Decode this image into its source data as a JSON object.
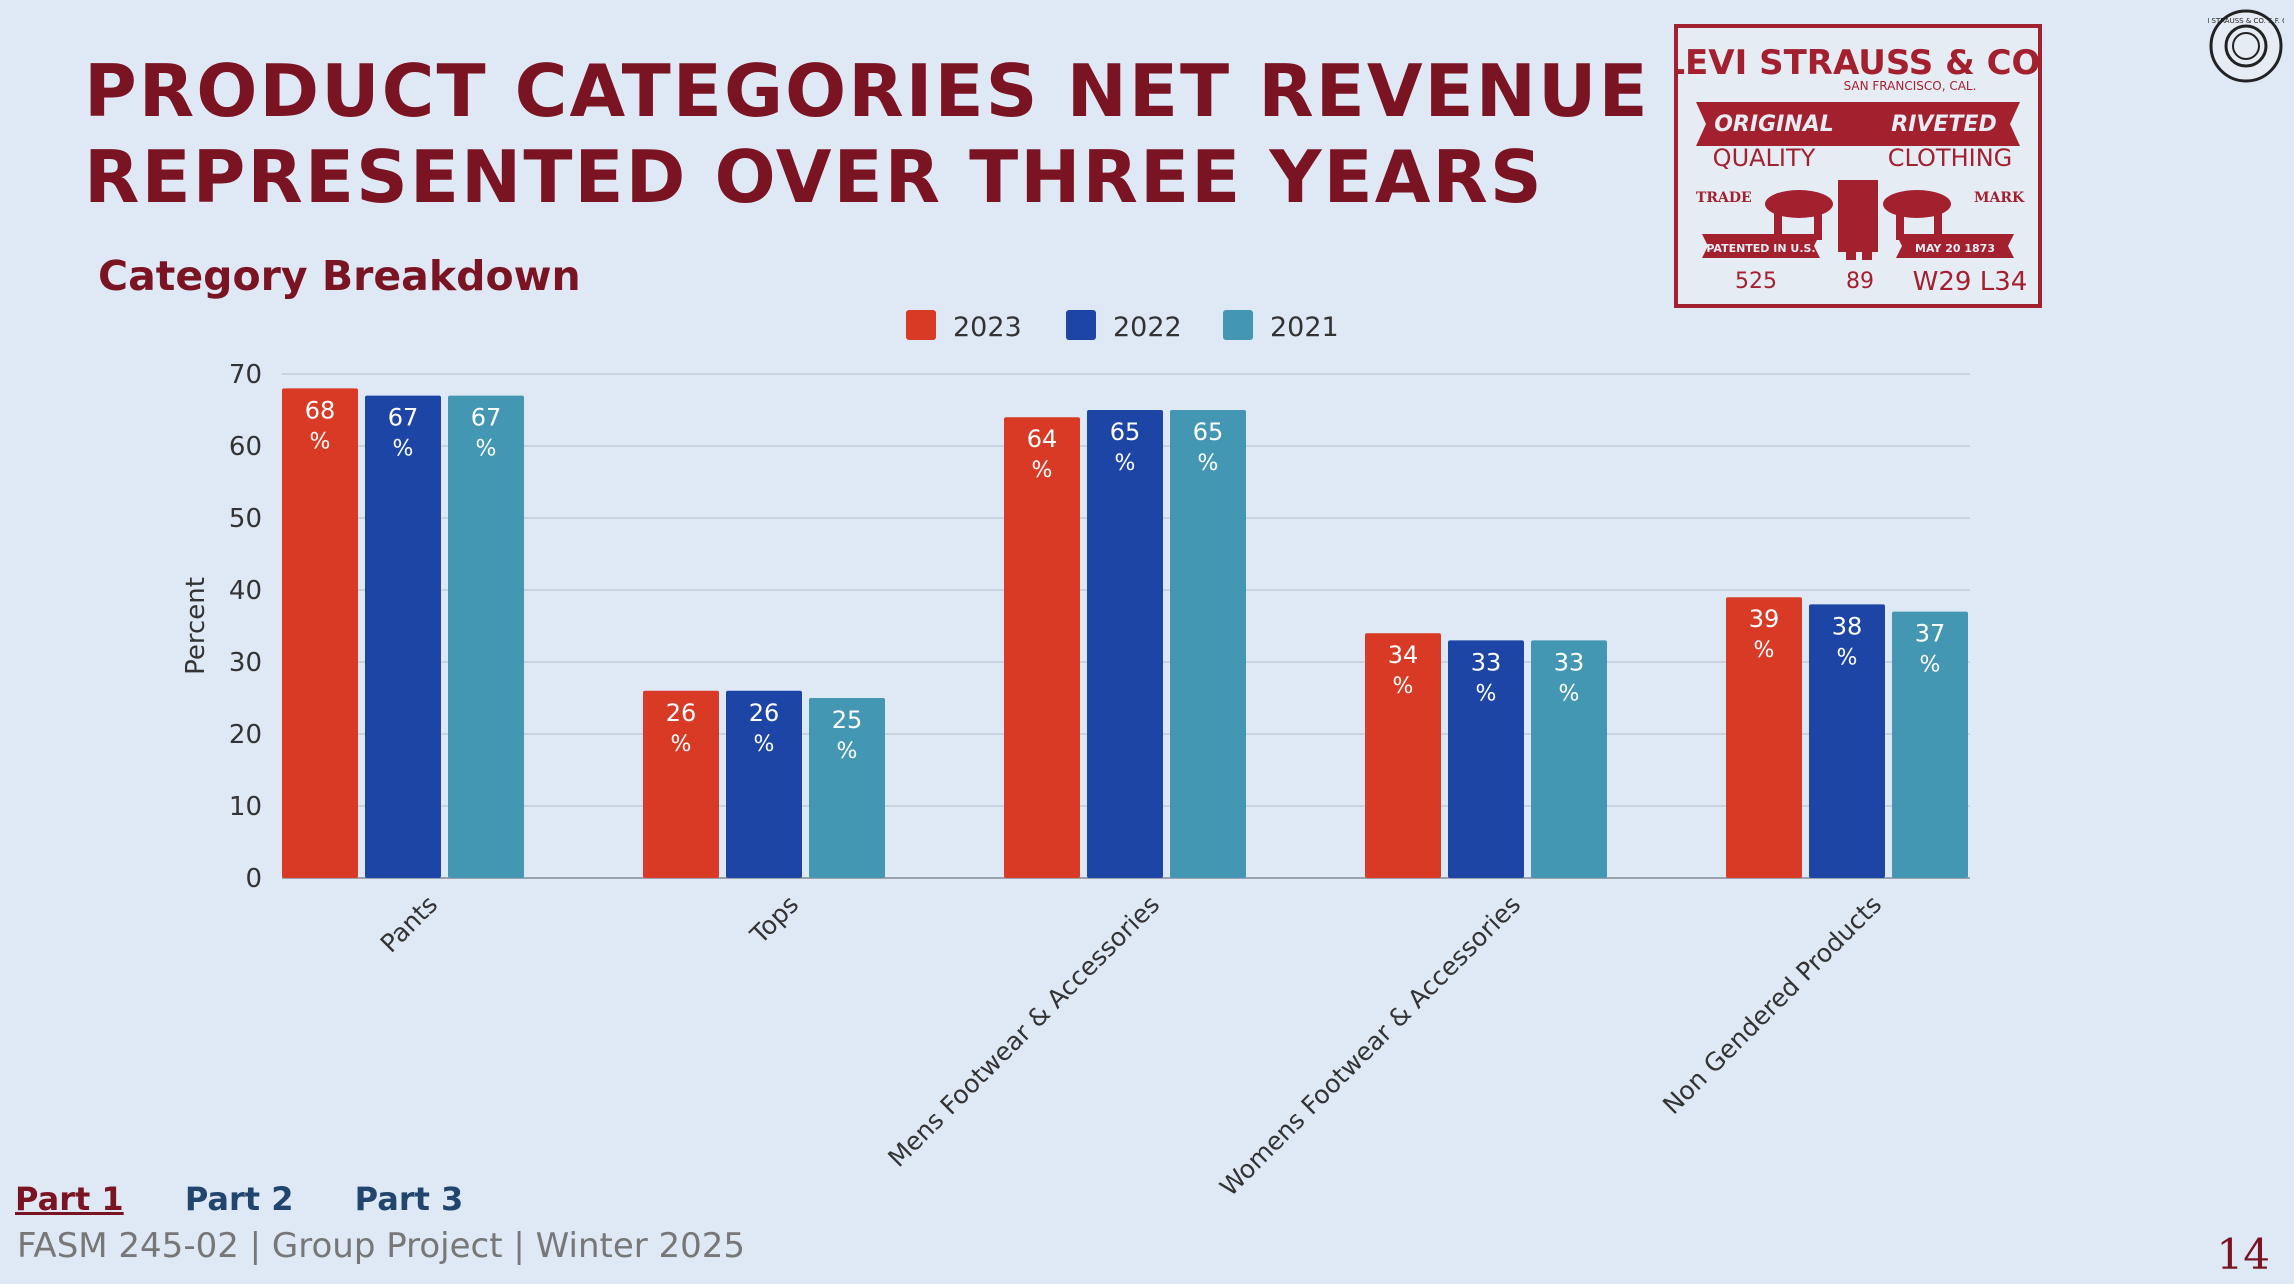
{
  "slide": {
    "title_line1": "PRODUCT CATEGORIES NET REVENUE",
    "title_line2": "REPRESENTED OVER THREE YEARS",
    "subtitle": "Category Breakdown",
    "nav": [
      "Part 1",
      "Part 2",
      "Part 3"
    ],
    "nav_active": 0,
    "footer": "FASM 245-02 | Group Project | Winter 2025",
    "page_number": "14"
  },
  "logo": {
    "line1": "LEVI STRAUSS & CO.",
    "line2": "SAN FRANCISCO, CAL.",
    "left_banner": "ORIGINAL",
    "right_banner": "RIVETED",
    "left_quality": "QUALITY",
    "right_quality": "CLOTHING",
    "trade": "TRADE",
    "mark": "MARK",
    "patented": "PATENTED IN U.S.",
    "date": "MAY 20 1873",
    "num1": "525",
    "num2": "89",
    "size": "W29 L34",
    "stamp": "LEVI STRAUSS & CO. S.F. CAL."
  },
  "chart_data": {
    "type": "bar",
    "categories": [
      "Pants",
      "Tops",
      "Mens Footwear & Accessories",
      "Womens Footwear & Accessories",
      "Non Gendered Products"
    ],
    "series": [
      {
        "name": "2023",
        "color": "#d93a25",
        "values": [
          68,
          26,
          64,
          34,
          39
        ],
        "labels": [
          "68 %",
          "26 %",
          "64 %",
          "34 %",
          "39 %"
        ]
      },
      {
        "name": "2022",
        "color": "#1d45a6",
        "values": [
          67,
          26,
          65,
          33,
          38
        ],
        "labels": [
          "67 %",
          "26 %",
          "65 %",
          "33 %",
          "38 %"
        ]
      },
      {
        "name": "2021",
        "color": "#4497b3",
        "values": [
          67,
          25,
          65,
          33,
          37
        ],
        "labels": [
          "67 %",
          "25 %",
          "65 %",
          "33 %",
          "37 %"
        ]
      }
    ],
    "xlabel": "",
    "ylabel": "Percent",
    "ylim": [
      0,
      70
    ],
    "yticks": [
      0,
      10,
      20,
      30,
      40,
      50,
      60,
      70
    ],
    "grid": true,
    "legend": "top-center"
  }
}
